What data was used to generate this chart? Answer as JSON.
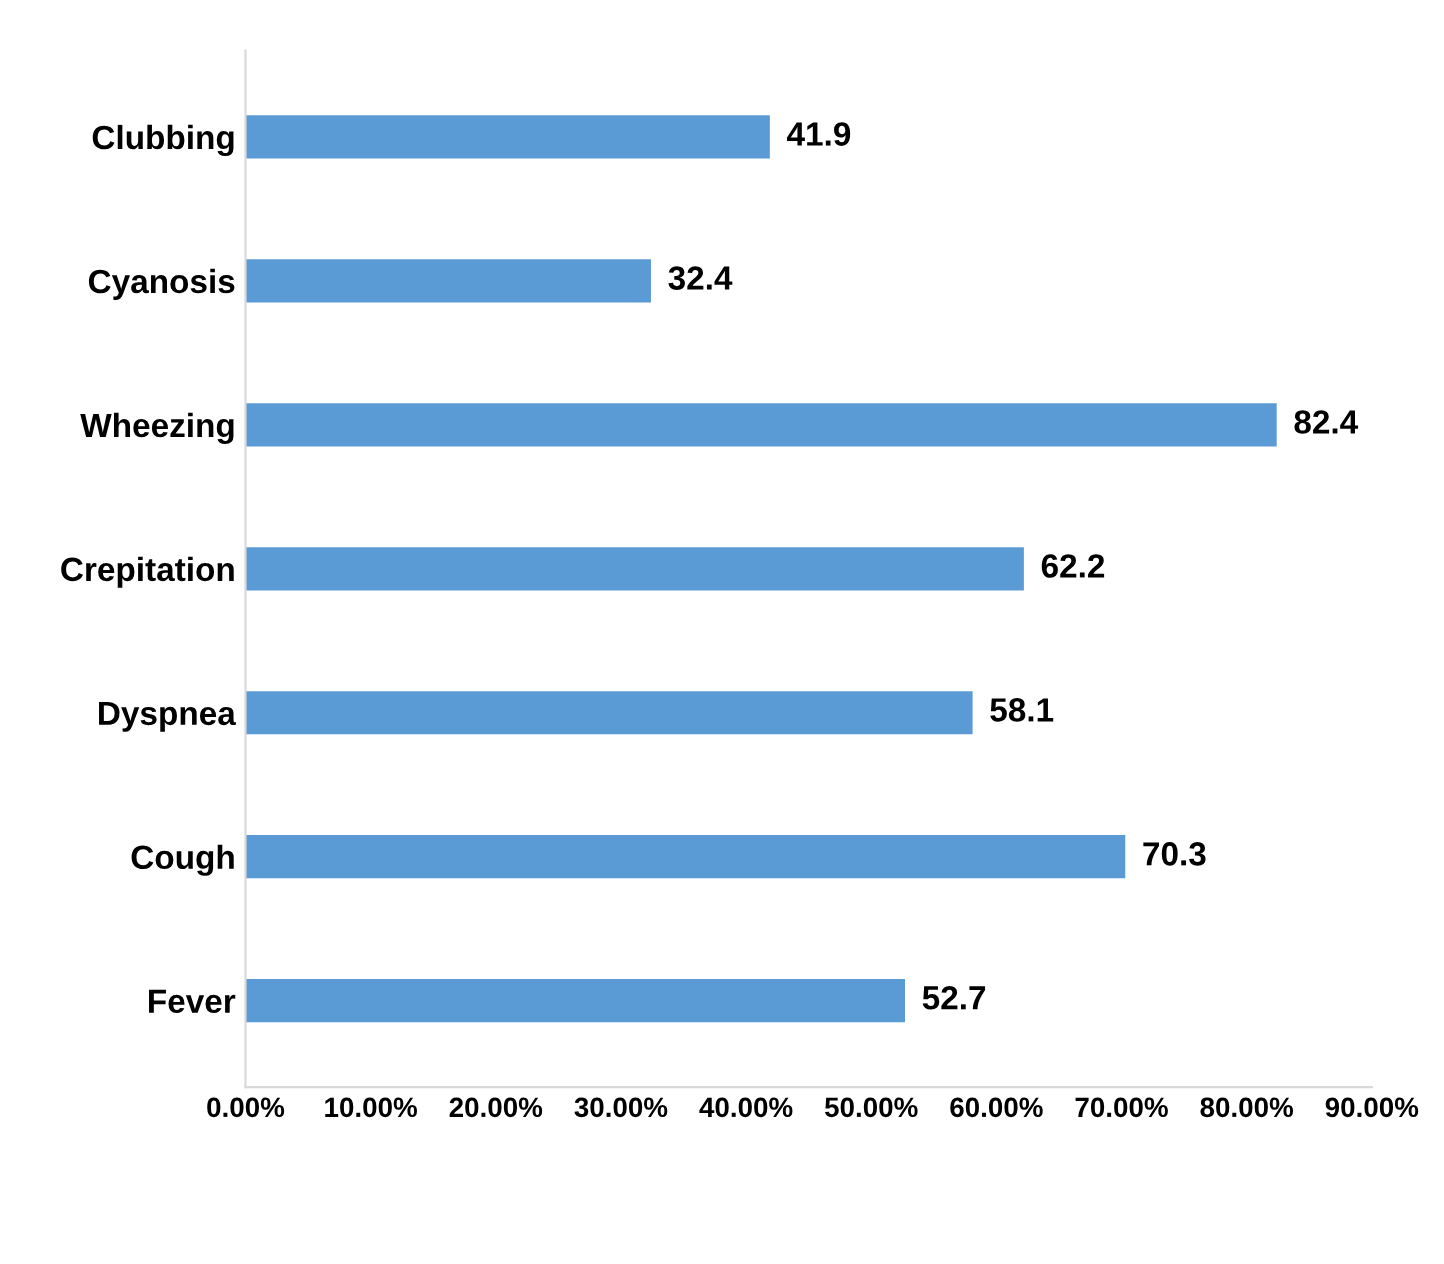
{
  "chart_data": {
    "type": "bar",
    "orientation": "horizontal",
    "categories": [
      "Clubbing",
      "Cyanosis",
      "Wheezing",
      "Crepitation",
      "Dyspnea",
      "Cough",
      "Fever"
    ],
    "values": [
      41.9,
      32.4,
      82.4,
      62.2,
      58.1,
      70.3,
      52.7
    ],
    "color": "#5b9bd5",
    "data_labels": true,
    "grid": false,
    "legend": false,
    "xlim": [
      0,
      90
    ],
    "xticks": [
      {
        "value": 0,
        "label": "0.00%"
      },
      {
        "value": 10,
        "label": "10.00%"
      },
      {
        "value": 20,
        "label": "20.00%"
      },
      {
        "value": 30,
        "label": "30.00%"
      },
      {
        "value": 40,
        "label": "40.00%"
      },
      {
        "value": 50,
        "label": "50.00%"
      },
      {
        "value": 60,
        "label": "60.00%"
      },
      {
        "value": 70,
        "label": "70.00%"
      },
      {
        "value": 80,
        "label": "80.00%"
      },
      {
        "value": 90,
        "label": "90.00%"
      }
    ]
  }
}
